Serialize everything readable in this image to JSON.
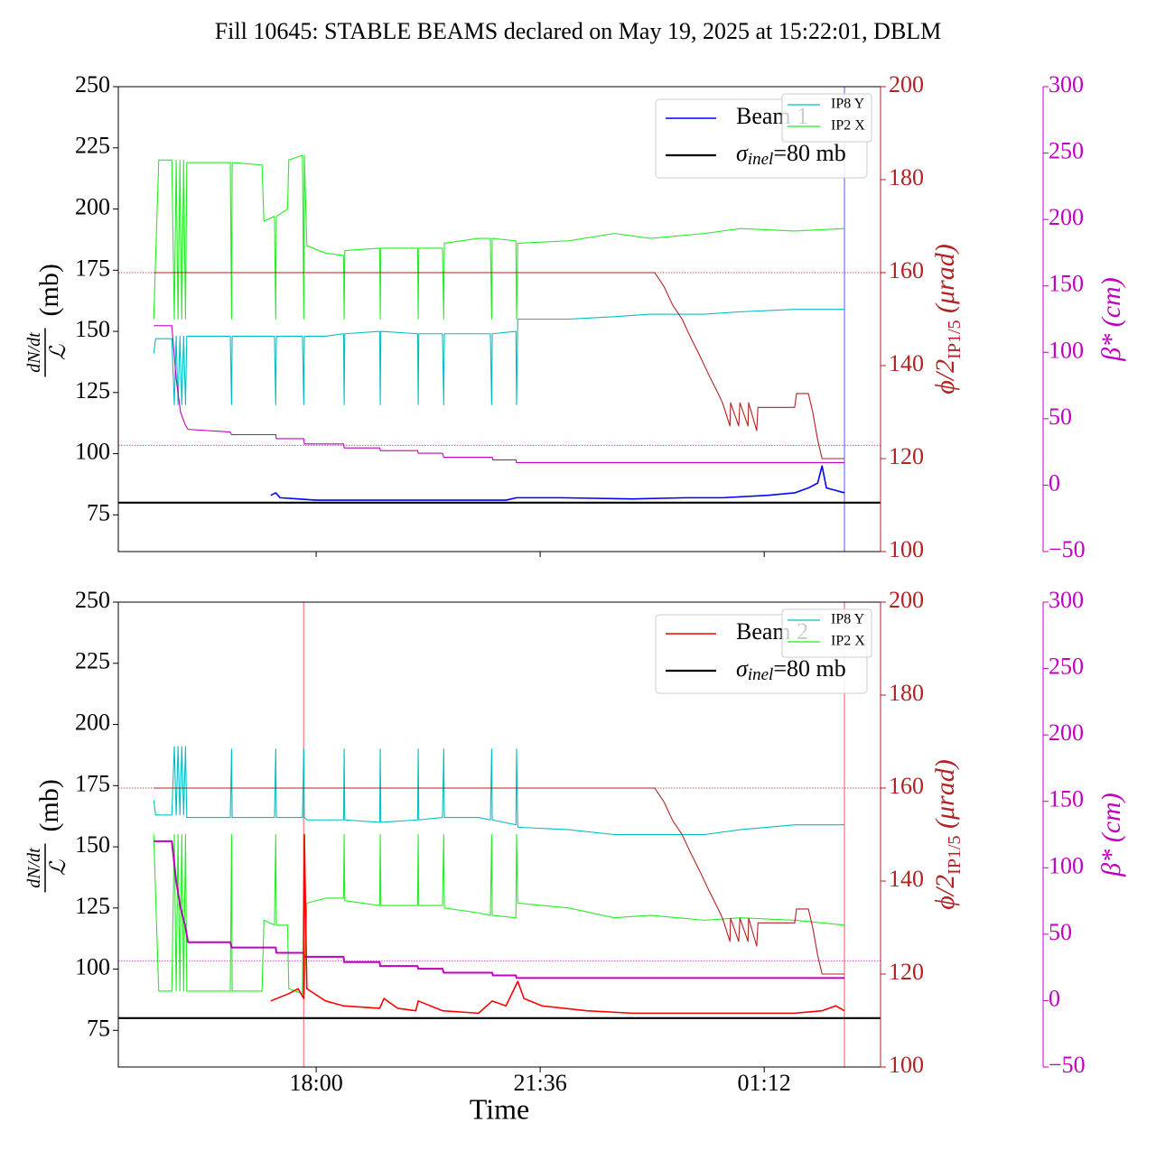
{
  "chart_data": [
    {
      "type": "line",
      "title": "Fill 10645: STABLE BEAMS declared on May 19, 2025 at 15:22:01, DBLM",
      "xlim": [
        14.82,
        27.07
      ],
      "xticks": [
        18,
        21.6,
        25.2
      ],
      "ylim": [
        60,
        250
      ],
      "yticks": [
        75,
        100,
        125,
        150,
        175,
        200,
        225,
        250
      ],
      "y2lim": [
        100,
        200
      ],
      "y2ticks": [
        100,
        120,
        140,
        160,
        180,
        200
      ],
      "y2color": "#b22222",
      "y3lim": [
        -50,
        300
      ],
      "y3ticks": [
        -50,
        0,
        50,
        100,
        150,
        200,
        250,
        300
      ],
      "y3color": "#c000c0",
      "ylabel": {
        "numerator": "dN/dt",
        "denominator": "ℒ",
        "unit": "(mb)"
      },
      "y2label": {
        "symbol": "ϕ/2",
        "subscript": "IP1/5",
        "unit": "(μrad)"
      },
      "y3label": {
        "symbol": "β*",
        "unit": "(cm)"
      },
      "sigma": {
        "value": 80,
        "symbol": "σ",
        "subscript": "inel",
        "text": "=80 mb",
        "color": "#000000"
      },
      "reference_lines": [
        {
          "axis": "y2",
          "value": 160,
          "color": "#b22222"
        },
        {
          "axis": "y3",
          "value": 30,
          "color": "#c000c0"
        }
      ],
      "vlines": {
        "x": [
          26.49
        ],
        "color": "#0000ff"
      },
      "series": [
        {
          "name": "IP2 X",
          "color": "#22ee22",
          "axis": "y",
          "legend": "ip",
          "x": [
            15.39,
            15.42,
            15.47,
            15.68,
            15.72,
            15.75,
            15.78,
            15.81,
            15.84,
            15.87,
            15.9,
            15.92,
            16.62,
            16.64,
            16.65,
            17.13,
            17.16,
            17.33,
            17.35,
            17.36,
            17.54,
            17.56,
            17.78,
            17.8,
            17.81,
            17.85,
            18.15,
            18.44,
            18.45,
            18.46,
            19.02,
            19.03,
            19.04,
            19.63,
            19.64,
            19.65,
            20.03,
            20.05,
            20.06,
            20.61,
            20.8,
            20.82,
            20.83,
            21.21,
            21.22,
            21.24,
            22.06,
            22.79,
            23.37,
            24.24,
            24.82,
            25.69,
            26.49
          ],
          "values": [
            155,
            180,
            220,
            220,
            155,
            220,
            155,
            220,
            155,
            220,
            155,
            219,
            219,
            155,
            219,
            218,
            195,
            197,
            155,
            197,
            200,
            220,
            222,
            155,
            222,
            185,
            182,
            181,
            155,
            183,
            184,
            155,
            184,
            184,
            155,
            184,
            184,
            155,
            186,
            188,
            188,
            155,
            188,
            187,
            155,
            186,
            187,
            190,
            188,
            190,
            192,
            191,
            192
          ]
        },
        {
          "name": "IP8 Y",
          "color": "#00bfc4",
          "axis": "y",
          "legend": "ip",
          "x": [
            15.39,
            15.42,
            15.47,
            15.68,
            15.72,
            15.75,
            15.78,
            15.81,
            15.84,
            15.87,
            15.9,
            15.92,
            16.62,
            16.64,
            16.65,
            17.13,
            17.16,
            17.33,
            17.35,
            17.36,
            17.54,
            17.56,
            17.78,
            17.8,
            17.81,
            17.85,
            18.15,
            18.44,
            18.45,
            18.46,
            19.02,
            19.03,
            19.04,
            19.63,
            19.64,
            19.65,
            20.03,
            20.05,
            20.06,
            20.61,
            20.8,
            20.82,
            20.83,
            21.21,
            21.22,
            21.24,
            22.06,
            22.79,
            23.37,
            24.24,
            24.82,
            25.69,
            26.49
          ],
          "values": [
            141,
            147,
            147,
            147,
            120,
            148,
            120,
            148,
            120,
            148,
            120,
            148,
            148,
            120,
            148,
            148,
            148,
            148,
            120,
            148,
            148,
            148,
            148,
            120,
            148,
            148,
            148,
            149,
            120,
            149,
            150,
            120,
            150,
            149,
            120,
            149,
            149,
            120,
            149,
            149,
            149,
            120,
            149,
            150,
            120,
            155,
            155,
            156,
            157,
            157,
            158,
            159,
            159
          ]
        },
        {
          "color": "#b22222",
          "axis": "y2",
          "x": [
            15.39,
            23.44,
            23.59,
            23.73,
            23.88,
            24.02,
            24.17,
            24.31,
            24.46,
            24.53,
            24.65,
            24.66,
            24.79,
            24.81,
            24.94,
            24.95,
            25.08,
            25.1,
            25.69,
            25.72,
            25.91,
            25.98,
            26.06,
            26.13,
            26.49
          ],
          "values": [
            160,
            160,
            157,
            153,
            150,
            146,
            142,
            138,
            134,
            132,
            127,
            132,
            127,
            132,
            127,
            132,
            126,
            131,
            131,
            134,
            134,
            130,
            124,
            120,
            120
          ]
        },
        {
          "color": "#c000c0",
          "axis": "y3",
          "x": [
            15.39,
            15.68,
            15.75,
            15.82,
            15.9,
            15.94,
            16.62,
            16.64,
            17.35,
            17.36,
            17.8,
            17.81,
            18.44,
            18.45,
            19.02,
            19.03,
            19.63,
            19.64,
            20.03,
            20.05,
            20.61,
            20.83,
            20.84,
            21.21,
            21.22,
            26.49
          ],
          "values": [
            120,
            120,
            80,
            55,
            45,
            42,
            40,
            38,
            38,
            35,
            35,
            31,
            31,
            28,
            28,
            26,
            26,
            24,
            24,
            21,
            21,
            21,
            19,
            19,
            17,
            17
          ]
        },
        {
          "name": "Beam 1",
          "color": "#0000ff",
          "axis": "y",
          "legend": "main",
          "x": [
            17.27,
            17.35,
            17.42,
            17.71,
            18.0,
            18.73,
            19.45,
            20.18,
            21.05,
            21.22,
            21.92,
            23.08,
            23.95,
            24.53,
            25.26,
            25.69,
            25.91,
            26.06,
            26.13,
            26.2,
            26.35,
            26.49
          ],
          "values": [
            83,
            84,
            82,
            81.5,
            81,
            81,
            81,
            81,
            81,
            82,
            82,
            81.5,
            82,
            82,
            83,
            84,
            86,
            88,
            95,
            86,
            85,
            84
          ]
        }
      ]
    },
    {
      "type": "line",
      "xlabel": "Time",
      "xlim": [
        14.82,
        27.07
      ],
      "xticks": [
        {
          "value": 18,
          "label": "18:00"
        },
        {
          "value": 21.6,
          "label": "21:36"
        },
        {
          "value": 25.2,
          "label": "01:12"
        }
      ],
      "ylim": [
        60,
        250
      ],
      "yticks": [
        75,
        100,
        125,
        150,
        175,
        200,
        225,
        250
      ],
      "y2lim": [
        100,
        200
      ],
      "y2ticks": [
        100,
        120,
        140,
        160,
        180,
        200
      ],
      "y2color": "#b22222",
      "y3lim": [
        -50,
        300
      ],
      "y3ticks": [
        -50,
        0,
        50,
        100,
        150,
        200,
        250,
        300
      ],
      "y3color": "#c000c0",
      "ylabel": {
        "numerator": "dN/dt",
        "denominator": "ℒ",
        "unit": "(mb)"
      },
      "y2label": {
        "symbol": "ϕ/2",
        "subscript": "IP1/5",
        "unit": "(μrad)"
      },
      "y3label": {
        "symbol": "β*",
        "unit": "(cm)"
      },
      "sigma": {
        "value": 80,
        "symbol": "σ",
        "subscript": "inel",
        "text": "=80 mb",
        "color": "#000000"
      },
      "reference_lines": [
        {
          "axis": "y2",
          "value": 160,
          "color": "#b22222"
        },
        {
          "axis": "y3",
          "value": 30,
          "color": "#c000c0"
        }
      ],
      "vlines": {
        "x": [
          17.8,
          26.49
        ],
        "color": "#ff0000"
      },
      "series": [
        {
          "name": "IP2 X",
          "color": "#22ee22",
          "axis": "y",
          "legend": "ip",
          "x": [
            15.39,
            15.42,
            15.47,
            15.68,
            15.72,
            15.75,
            15.78,
            15.81,
            15.84,
            15.87,
            15.9,
            15.92,
            16.62,
            16.64,
            16.65,
            17.13,
            17.16,
            17.33,
            17.35,
            17.36,
            17.54,
            17.56,
            17.78,
            17.8,
            17.81,
            17.85,
            18.15,
            18.44,
            18.45,
            18.46,
            19.02,
            19.03,
            19.04,
            19.63,
            19.64,
            19.65,
            20.03,
            20.05,
            20.06,
            20.61,
            20.8,
            20.82,
            20.83,
            21.21,
            21.22,
            21.24,
            22.06,
            22.79,
            23.37,
            24.24,
            24.82,
            25.69,
            26.49
          ],
          "values": [
            155,
            130,
            91,
            91,
            155,
            91,
            155,
            91,
            155,
            91,
            155,
            91,
            91,
            155,
            91,
            91,
            120,
            118,
            155,
            118,
            118,
            92,
            90,
            155,
            90,
            127,
            129,
            129,
            155,
            128,
            126,
            155,
            126,
            126,
            155,
            126,
            126,
            155,
            125,
            123,
            122,
            155,
            122,
            121,
            155,
            127,
            125,
            121,
            122,
            120,
            121,
            120,
            118
          ]
        },
        {
          "name": "IP8 Y",
          "color": "#00bfc4",
          "axis": "y",
          "legend": "ip",
          "x": [
            15.39,
            15.42,
            15.47,
            15.68,
            15.72,
            15.75,
            15.78,
            15.81,
            15.84,
            15.87,
            15.9,
            15.92,
            16.62,
            16.64,
            16.65,
            17.13,
            17.16,
            17.33,
            17.35,
            17.36,
            17.54,
            17.56,
            17.78,
            17.8,
            17.81,
            17.85,
            18.15,
            18.44,
            18.45,
            18.46,
            19.02,
            19.03,
            19.04,
            19.63,
            19.64,
            19.65,
            20.03,
            20.05,
            20.06,
            20.61,
            20.8,
            20.82,
            20.83,
            21.21,
            21.22,
            21.24,
            22.06,
            22.79,
            23.37,
            24.24,
            24.82,
            25.69,
            26.49
          ],
          "values": [
            169,
            163,
            163,
            163,
            191,
            163,
            191,
            163,
            191,
            163,
            191,
            162,
            162,
            190,
            162,
            162,
            162,
            162,
            190,
            162,
            162,
            162,
            162,
            190,
            162,
            161,
            161,
            161,
            190,
            161,
            160,
            190,
            160,
            161,
            190,
            161,
            162,
            190,
            162,
            162,
            161,
            190,
            161,
            159,
            190,
            158,
            157,
            155,
            155,
            155,
            157,
            159,
            159
          ]
        },
        {
          "color": "#b22222",
          "axis": "y2",
          "x": [
            15.39,
            23.44,
            23.59,
            23.73,
            23.88,
            24.02,
            24.17,
            24.31,
            24.46,
            24.53,
            24.65,
            24.66,
            24.79,
            24.81,
            24.94,
            24.95,
            25.08,
            25.1,
            25.69,
            25.72,
            25.91,
            25.98,
            26.06,
            26.13,
            26.49
          ],
          "values": [
            160,
            160,
            157,
            153,
            150,
            146,
            142,
            138,
            134,
            132,
            127,
            132,
            127,
            132,
            127,
            132,
            126,
            131,
            131,
            134,
            134,
            130,
            124,
            120,
            120
          ]
        },
        {
          "color": "#c000c0",
          "axis": "y3",
          "x": [
            15.39,
            15.68,
            15.75,
            15.82,
            15.9,
            15.94,
            16.62,
            16.64,
            17.35,
            17.36,
            17.8,
            17.81,
            18.44,
            18.45,
            19.02,
            19.03,
            19.63,
            19.64,
            20.03,
            20.05,
            20.61,
            20.83,
            20.84,
            21.21,
            21.22,
            26.49
          ],
          "values": [
            120,
            120,
            90,
            70,
            55,
            44,
            44,
            40,
            40,
            36,
            36,
            33,
            33,
            29,
            29,
            26,
            26,
            24,
            24,
            21,
            21,
            21,
            19,
            19,
            17,
            17
          ]
        },
        {
          "name": "Beam 2",
          "color": "#ff0000",
          "axis": "y",
          "legend": "main",
          "x": [
            17.27,
            17.56,
            17.71,
            17.8,
            17.81,
            17.85,
            18.15,
            18.44,
            19.02,
            19.09,
            19.31,
            19.6,
            19.64,
            20.03,
            20.61,
            20.83,
            21.05,
            21.24,
            21.34,
            21.63,
            22.35,
            23.08,
            24.53,
            25.69,
            26.13,
            26.35,
            26.49
          ],
          "values": [
            87,
            90,
            92,
            88,
            155,
            92,
            87,
            85,
            84,
            88,
            84,
            83,
            87,
            83,
            82,
            87,
            85,
            95,
            88,
            85,
            83,
            82,
            82,
            82,
            83,
            85,
            83
          ]
        }
      ]
    }
  ]
}
